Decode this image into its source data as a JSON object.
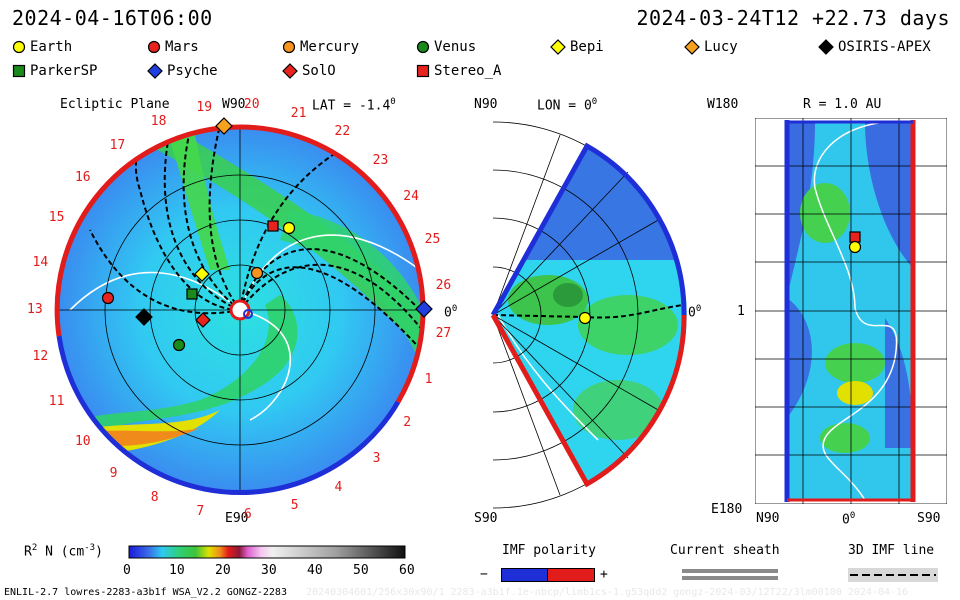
{
  "header": {
    "date_left": "2024-04-16T06:00",
    "date_right": "2024-03-24T12  +22.73 days"
  },
  "legend": [
    {
      "label": "Earth",
      "color": "#ffff00",
      "shape": "circle"
    },
    {
      "label": "Mars",
      "color": "#e8231e",
      "shape": "circle"
    },
    {
      "label": "Mercury",
      "color": "#f7931e",
      "shape": "circle"
    },
    {
      "label": "Venus",
      "color": "#1a8a1a",
      "shape": "circle"
    },
    {
      "label": "Bepi",
      "color": "#ffff00",
      "shape": "diamond"
    },
    {
      "label": "Lucy",
      "color": "#f7a21e",
      "shape": "diamond"
    },
    {
      "label": "OSIRIS-APEX",
      "color": "#000000",
      "shape": "diamond"
    },
    {
      "label": "ParkerSP",
      "color": "#1a8a1a",
      "shape": "square"
    },
    {
      "label": "Psyche",
      "color": "#1f3fe0",
      "shape": "diamond"
    },
    {
      "label": "SolO",
      "color": "#e8231e",
      "shape": "diamond"
    },
    {
      "label": "Stereo_A",
      "color": "#e8231e",
      "shape": "square"
    }
  ],
  "ecliptic": {
    "title": "Ecliptic Plane",
    "w_label": "W90",
    "lat_label": "LAT = -1.4",
    "lat_sup": "0",
    "bottom_label": "E90",
    "zero_label": "0",
    "zero_sup": "0",
    "rotation_numbers": [
      "19",
      "20",
      "21",
      "22",
      "23",
      "24",
      "25",
      "26",
      "27",
      "1",
      "2",
      "3",
      "4",
      "5",
      "6",
      "7",
      "8",
      "9",
      "10",
      "11",
      "12",
      "13",
      "14",
      "15",
      "16",
      "17",
      "18"
    ]
  },
  "meridional": {
    "top_label": "N90",
    "lon_label": "LON = 0",
    "lon_sup": "0",
    "bottom_label": "S90",
    "zero_label": "0",
    "zero_sup": "0"
  },
  "synoptic": {
    "top_label": "W180",
    "r_label": "R = 1.0 AU",
    "mid_label": "1",
    "bottom_left": "E180",
    "x_labels": [
      "N90",
      "0",
      "S90"
    ],
    "x_zero_sup": "0"
  },
  "colorbar": {
    "label": "R",
    "label_sup": "2",
    "label_rest": " N (cm",
    "label_sup2": "-3",
    "label_end": ")",
    "ticks": [
      "0",
      "10",
      "20",
      "30",
      "40",
      "50",
      "60"
    ]
  },
  "imf_polarity": {
    "title": "IMF polarity",
    "minus": "−",
    "plus": "+"
  },
  "current_sheath": {
    "title": "Current sheath"
  },
  "imf_line": {
    "title": "3D IMF line"
  },
  "footer": {
    "left": "ENLIL-2.7 lowres-2283-a3b1f WSA_V2.2 GONGZ-2283",
    "right": "20240304601/256x30x90/1 2283-a3b1f.1e-nbcp/limb1cs-1.g53qdd2 gongz-2024-03/12T22/3lm00100   2024-04-16"
  },
  "colors": {
    "accent_red": "#e21b1b",
    "blue": "#1f2fd8"
  }
}
